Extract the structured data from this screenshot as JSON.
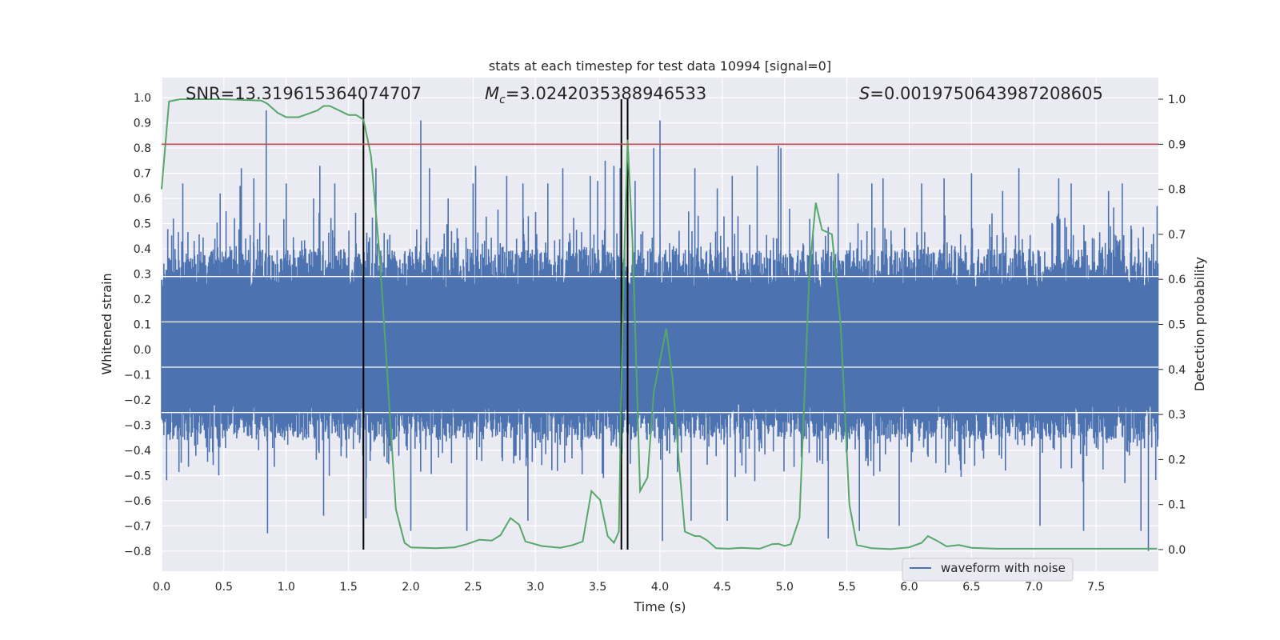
{
  "chart_data": {
    "type": "line",
    "title": "stats at each timestep for test data 10994 [signal=0]",
    "xlabel": "Time (s)",
    "ylabel": "Whitened strain",
    "y2label": "Detection probability",
    "xlim": [
      0,
      8
    ],
    "ylim": [
      -0.88,
      1.08
    ],
    "y2lim": [
      -0.048,
      1.048
    ],
    "x_ticks": [
      "0.0",
      "0.5",
      "1.0",
      "1.5",
      "2.0",
      "2.5",
      "3.0",
      "3.5",
      "4.0",
      "4.5",
      "5.0",
      "5.5",
      "6.0",
      "6.5",
      "7.0",
      "7.5"
    ],
    "y_ticks": [
      "1.0",
      "0.9",
      "0.8",
      "0.7",
      "0.6",
      "0.5",
      "0.4",
      "0.3",
      "0.2",
      "0.1",
      "0.0",
      "−0.1",
      "−0.2",
      "−0.3",
      "−0.4",
      "−0.5",
      "−0.6",
      "−0.7",
      "−0.8"
    ],
    "y2_ticks": [
      "1.0",
      "0.9",
      "0.8",
      "0.7",
      "0.6",
      "0.5",
      "0.4",
      "0.3",
      "0.2",
      "0.1",
      "0.0"
    ],
    "annotations": {
      "snr": "SNR=13.319615364074707",
      "mc_symbol": "M",
      "mc_sub": "c",
      "mc_value": "=3.0242035388946533",
      "s_symbol": "S",
      "s_value": "=0.0019750643987208605"
    },
    "threshold": 0.9,
    "vertical_lines": [
      1.62,
      3.69,
      3.74
    ],
    "series": [
      {
        "name": "waveform with noise",
        "axis": "left",
        "color": "#4c72b0",
        "style": "noise",
        "envelope_pos": 0.4,
        "envelope_neg": -0.36,
        "spikes": [
          [
            0.17,
            0.66
          ],
          [
            0.47,
            0.62
          ],
          [
            0.63,
            0.65
          ],
          [
            0.64,
            0.72
          ],
          [
            0.74,
            0.68
          ],
          [
            0.84,
            0.95
          ],
          [
            0.85,
            -0.73
          ],
          [
            1.0,
            0.66
          ],
          [
            1.22,
            0.6
          ],
          [
            1.27,
            0.73
          ],
          [
            1.3,
            -0.66
          ],
          [
            1.39,
            0.66
          ],
          [
            1.64,
            -0.67
          ],
          [
            1.72,
            0.72
          ],
          [
            2.0,
            -0.72
          ],
          [
            2.08,
            0.91
          ],
          [
            2.15,
            0.72
          ],
          [
            2.3,
            0.6
          ],
          [
            2.45,
            -0.72
          ],
          [
            2.5,
            0.66
          ],
          [
            2.52,
            0.73
          ],
          [
            2.77,
            0.69
          ],
          [
            2.9,
            0.66
          ],
          [
            2.94,
            -0.68
          ],
          [
            3.1,
            0.66
          ],
          [
            3.22,
            0.72
          ],
          [
            3.44,
            0.69
          ],
          [
            3.5,
            0.67
          ],
          [
            3.56,
            0.75
          ],
          [
            3.63,
            0.73
          ],
          [
            3.68,
            0.72
          ],
          [
            3.8,
            0.67
          ],
          [
            3.95,
            0.8
          ],
          [
            4.0,
            0.91
          ],
          [
            4.02,
            -0.76
          ],
          [
            4.25,
            -0.68
          ],
          [
            4.28,
            0.72
          ],
          [
            4.46,
            0.64
          ],
          [
            4.54,
            -0.68
          ],
          [
            4.58,
            0.69
          ],
          [
            4.78,
            0.73
          ],
          [
            4.95,
            0.81
          ],
          [
            4.97,
            0.8
          ],
          [
            5.35,
            -0.75
          ],
          [
            5.43,
            0.7
          ],
          [
            5.6,
            -0.72
          ],
          [
            5.7,
            0.66
          ],
          [
            5.79,
            0.68
          ],
          [
            5.92,
            -0.7
          ],
          [
            6.1,
            0.66
          ],
          [
            6.28,
            0.68
          ],
          [
            6.5,
            0.7
          ],
          [
            6.75,
            0.63
          ],
          [
            6.88,
            0.72
          ],
          [
            7.05,
            -0.7
          ],
          [
            7.2,
            0.68
          ],
          [
            7.3,
            0.66
          ],
          [
            7.4,
            -0.72
          ],
          [
            7.6,
            0.63
          ],
          [
            7.71,
            0.66
          ],
          [
            7.86,
            -0.72
          ],
          [
            7.92,
            -0.8
          ],
          [
            7.99,
            0.57
          ]
        ]
      },
      {
        "axis": "right",
        "color": "#55a868",
        "points": [
          [
            0.0,
            0.8
          ],
          [
            0.06,
            0.995
          ],
          [
            0.15,
            1.0
          ],
          [
            0.5,
            1.0
          ],
          [
            0.8,
            0.997
          ],
          [
            0.85,
            0.99
          ],
          [
            0.93,
            0.97
          ],
          [
            1.0,
            0.96
          ],
          [
            1.1,
            0.96
          ],
          [
            1.25,
            0.975
          ],
          [
            1.3,
            0.985
          ],
          [
            1.35,
            0.985
          ],
          [
            1.5,
            0.965
          ],
          [
            1.56,
            0.965
          ],
          [
            1.62,
            0.955
          ],
          [
            1.68,
            0.875
          ],
          [
            1.75,
            0.65
          ],
          [
            1.8,
            0.44
          ],
          [
            1.88,
            0.09
          ],
          [
            1.95,
            0.015
          ],
          [
            2.0,
            0.005
          ],
          [
            2.2,
            0.003
          ],
          [
            2.35,
            0.005
          ],
          [
            2.45,
            0.012
          ],
          [
            2.55,
            0.022
          ],
          [
            2.65,
            0.02
          ],
          [
            2.72,
            0.032
          ],
          [
            2.8,
            0.07
          ],
          [
            2.87,
            0.055
          ],
          [
            2.92,
            0.018
          ],
          [
            3.05,
            0.008
          ],
          [
            3.2,
            0.004
          ],
          [
            3.3,
            0.01
          ],
          [
            3.38,
            0.018
          ],
          [
            3.45,
            0.13
          ],
          [
            3.52,
            0.11
          ],
          [
            3.58,
            0.03
          ],
          [
            3.63,
            0.015
          ],
          [
            3.67,
            0.04
          ],
          [
            3.7,
            0.52
          ],
          [
            3.74,
            0.91
          ],
          [
            3.78,
            0.68
          ],
          [
            3.84,
            0.13
          ],
          [
            3.9,
            0.16
          ],
          [
            3.95,
            0.35
          ],
          [
            4.05,
            0.49
          ],
          [
            4.1,
            0.38
          ],
          [
            4.15,
            0.2
          ],
          [
            4.2,
            0.04
          ],
          [
            4.28,
            0.03
          ],
          [
            4.32,
            0.03
          ],
          [
            4.38,
            0.02
          ],
          [
            4.45,
            0.003
          ],
          [
            4.55,
            0.002
          ],
          [
            4.65,
            0.004
          ],
          [
            4.8,
            0.002
          ],
          [
            4.9,
            0.012
          ],
          [
            4.95,
            0.013
          ],
          [
            5.0,
            0.008
          ],
          [
            5.05,
            0.012
          ],
          [
            5.12,
            0.07
          ],
          [
            5.2,
            0.62
          ],
          [
            5.25,
            0.77
          ],
          [
            5.3,
            0.71
          ],
          [
            5.38,
            0.7
          ],
          [
            5.45,
            0.5
          ],
          [
            5.52,
            0.1
          ],
          [
            5.58,
            0.01
          ],
          [
            5.7,
            0.003
          ],
          [
            5.85,
            0.001
          ],
          [
            6.0,
            0.005
          ],
          [
            6.1,
            0.015
          ],
          [
            6.15,
            0.03
          ],
          [
            6.22,
            0.02
          ],
          [
            6.3,
            0.007
          ],
          [
            6.4,
            0.01
          ],
          [
            6.5,
            0.004
          ],
          [
            6.7,
            0.002
          ],
          [
            7.0,
            0.002
          ],
          [
            7.3,
            0.002
          ],
          [
            7.6,
            0.002
          ],
          [
            7.99,
            0.002
          ]
        ]
      },
      {
        "axis": "right",
        "color": "#c44e52",
        "style": "hline",
        "value": 0.9
      }
    ],
    "legend": {
      "position": "lower-right"
    },
    "grid": true
  }
}
